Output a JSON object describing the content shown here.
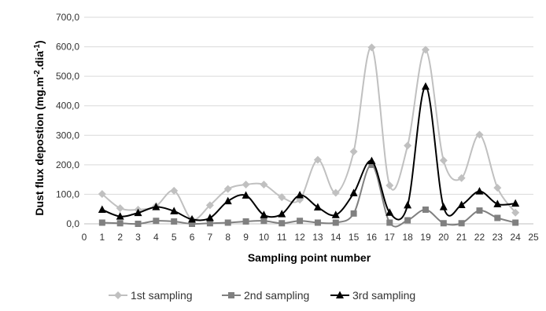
{
  "chart_data": {
    "type": "line",
    "x": [
      1,
      2,
      3,
      4,
      5,
      6,
      7,
      8,
      9,
      10,
      11,
      12,
      13,
      14,
      15,
      16,
      17,
      18,
      19,
      20,
      21,
      22,
      23,
      24
    ],
    "series": [
      {
        "name": "1st sampling",
        "values": [
          101,
          53,
          48,
          60,
          112,
          15,
          63,
          118,
          133,
          133,
          90,
          82,
          217,
          105,
          245,
          598,
          130,
          265,
          590,
          215,
          155,
          302,
          122,
          38
        ],
        "color": "#c0c0c0",
        "marker": "diamond"
      },
      {
        "name": "2nd sampling",
        "values": [
          4,
          2,
          0,
          10,
          8,
          0,
          2,
          4,
          8,
          10,
          2,
          10,
          4,
          4,
          35,
          200,
          4,
          12,
          48,
          2,
          2,
          45,
          20,
          4
        ],
        "color": "#808080",
        "marker": "square"
      },
      {
        "name": "3rd sampling",
        "values": [
          48,
          25,
          37,
          57,
          43,
          15,
          20,
          77,
          96,
          30,
          33,
          97,
          56,
          30,
          104,
          213,
          38,
          63,
          465,
          57,
          64,
          110,
          67,
          69
        ],
        "color": "#000000",
        "marker": "triangle"
      }
    ],
    "xlabel": "Sampling point number",
    "ylabel": "Dust flux depostion (mg.m-2.dia-1)",
    "ylabel_parts": {
      "text": "Dust flux depostion (mg.m",
      "sup1": "-2",
      "mid": ".dia",
      "sup2": "-1",
      "end": ")"
    },
    "xlim": [
      0,
      25
    ],
    "ylim": [
      0,
      700
    ],
    "xticks": [
      "0",
      "1",
      "2",
      "3",
      "4",
      "5",
      "6",
      "7",
      "8",
      "9",
      "10",
      "11",
      "12",
      "13",
      "14",
      "15",
      "16",
      "17",
      "18",
      "19",
      "20",
      "21",
      "22",
      "23",
      "24",
      "25"
    ],
    "yticks": [
      "0,0",
      "100,0",
      "200,0",
      "300,0",
      "400,0",
      "500,0",
      "600,0",
      "700,0"
    ],
    "grid": "horizontal",
    "legend_position": "bottom"
  }
}
